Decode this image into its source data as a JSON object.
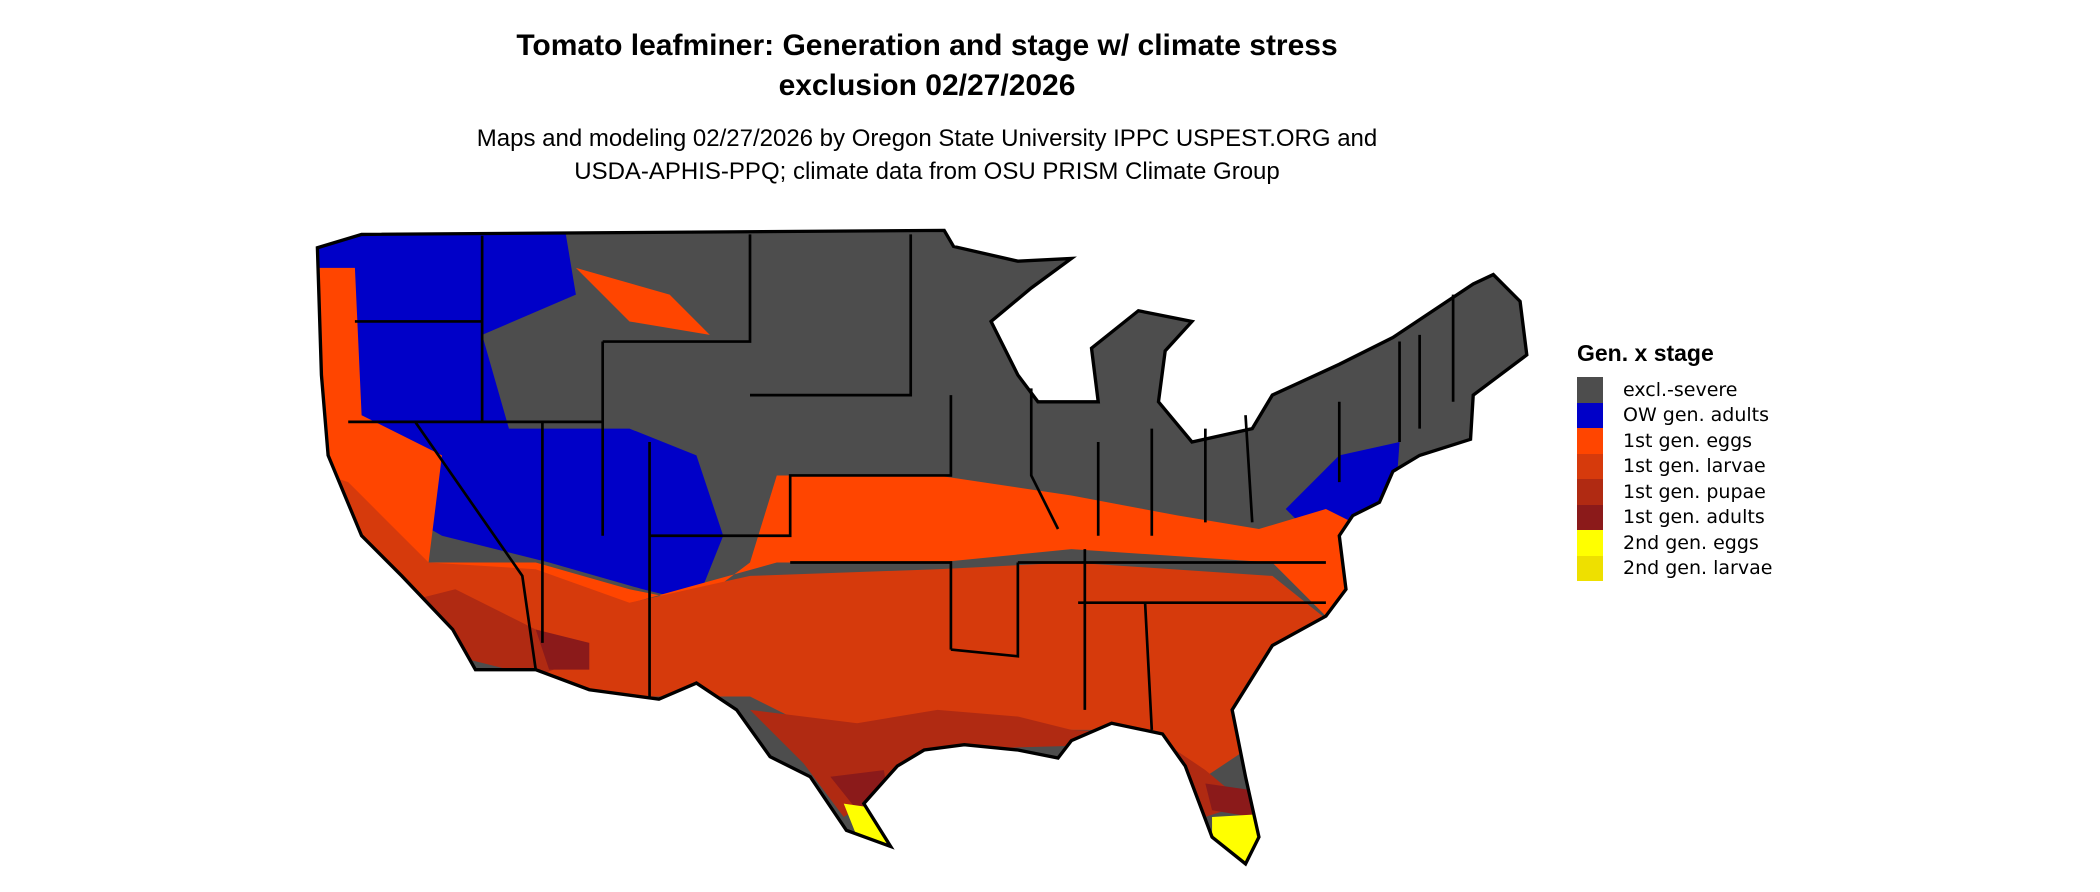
{
  "title": {
    "line1": "Tomato leafminer: Generation and stage w/ climate stress",
    "line2": "exclusion 02/27/2026"
  },
  "subtitle": {
    "line1": "Maps and modeling 02/27/2026 by Oregon State University IPPC USPEST.ORG and",
    "line2": "USDA-APHIS-PPQ; climate data from OSU PRISM Climate Group"
  },
  "legend": {
    "title": "Gen. x stage",
    "items": [
      {
        "label": "excl.-severe",
        "color": "#4d4d4d"
      },
      {
        "label": "OW gen. adults",
        "color": "#0000c8"
      },
      {
        "label": "1st gen. eggs",
        "color": "#ff4500"
      },
      {
        "label": "1st gen. larvae",
        "color": "#d63a0c"
      },
      {
        "label": "1st gen. pupae",
        "color": "#b02a12"
      },
      {
        "label": "1st gen. adults",
        "color": "#8b1a1a"
      },
      {
        "label": "2nd gen. eggs",
        "color": "#ffff00"
      },
      {
        "label": "2nd gen. larvae",
        "color": "#eee000"
      }
    ]
  }
}
